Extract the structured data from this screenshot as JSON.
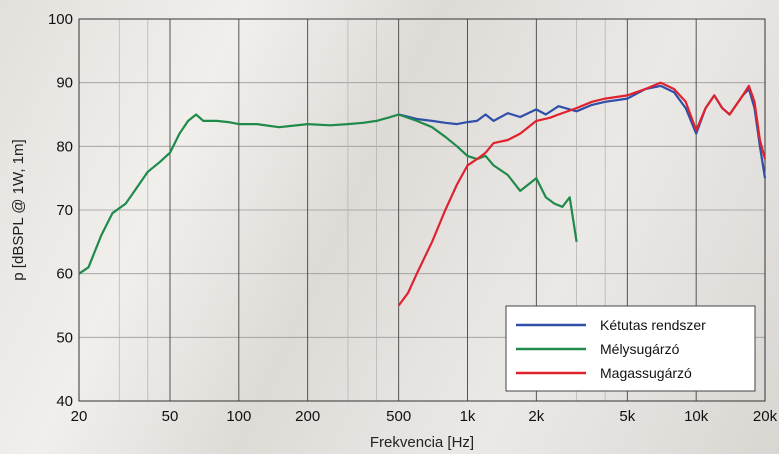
{
  "chart_data": {
    "type": "line",
    "title": "",
    "xlabel": "Frekvencia [Hz]",
    "ylabel": "p [dBSPL @ 1W, 1m]",
    "x_scale": "log",
    "xlim": [
      20,
      20000
    ],
    "ylim": [
      40,
      100
    ],
    "x_ticks": [
      20,
      50,
      100,
      200,
      500,
      1000,
      2000,
      5000,
      10000,
      20000
    ],
    "x_tick_labels": [
      "20",
      "50",
      "100",
      "200",
      "500",
      "1k",
      "2k",
      "5k",
      "10k",
      "20k"
    ],
    "x_minor_grid": [
      30,
      40,
      300,
      400,
      3000,
      4000
    ],
    "y_ticks": [
      40,
      50,
      60,
      70,
      80,
      90,
      100
    ],
    "y_tick_labels": [
      "40",
      "50",
      "60",
      "70",
      "80",
      "90",
      "100"
    ],
    "grid": true,
    "legend_position": "bottom-right",
    "series": [
      {
        "name": "Kétutas rendszer",
        "color": "#2f4fa8",
        "points": [
          [
            500,
            85
          ],
          [
            600,
            84.3
          ],
          [
            700,
            84
          ],
          [
            800,
            83.7
          ],
          [
            900,
            83.5
          ],
          [
            1000,
            83.8
          ],
          [
            1100,
            84
          ],
          [
            1200,
            85
          ],
          [
            1300,
            84
          ],
          [
            1500,
            85.2
          ],
          [
            1700,
            84.6
          ],
          [
            2000,
            85.8
          ],
          [
            2200,
            85
          ],
          [
            2500,
            86.3
          ],
          [
            3000,
            85.5
          ],
          [
            3500,
            86.5
          ],
          [
            4000,
            87
          ],
          [
            5000,
            87.5
          ],
          [
            6000,
            89
          ],
          [
            7000,
            89.5
          ],
          [
            8000,
            88.5
          ],
          [
            9000,
            86
          ],
          [
            10000,
            82
          ],
          [
            11000,
            86
          ],
          [
            12000,
            88
          ],
          [
            13000,
            86
          ],
          [
            14000,
            85
          ],
          [
            16000,
            88
          ],
          [
            17000,
            89
          ],
          [
            18000,
            86
          ],
          [
            19000,
            80
          ],
          [
            20000,
            75
          ]
        ]
      },
      {
        "name": "Mélysugárzó",
        "color": "#1f8a4a",
        "points": [
          [
            20,
            60
          ],
          [
            22,
            61
          ],
          [
            25,
            66
          ],
          [
            28,
            69.5
          ],
          [
            32,
            71
          ],
          [
            35,
            73
          ],
          [
            40,
            76
          ],
          [
            45,
            77.5
          ],
          [
            50,
            79
          ],
          [
            55,
            82
          ],
          [
            60,
            84
          ],
          [
            65,
            85
          ],
          [
            70,
            84
          ],
          [
            80,
            84
          ],
          [
            90,
            83.8
          ],
          [
            100,
            83.5
          ],
          [
            120,
            83.5
          ],
          [
            150,
            83
          ],
          [
            200,
            83.5
          ],
          [
            250,
            83.3
          ],
          [
            300,
            83.5
          ],
          [
            350,
            83.7
          ],
          [
            400,
            84
          ],
          [
            450,
            84.5
          ],
          [
            500,
            85
          ],
          [
            600,
            84
          ],
          [
            700,
            83
          ],
          [
            800,
            81.5
          ],
          [
            900,
            80
          ],
          [
            1000,
            78.5
          ],
          [
            1100,
            78
          ],
          [
            1200,
            78.5
          ],
          [
            1300,
            77
          ],
          [
            1500,
            75.5
          ],
          [
            1700,
            73
          ],
          [
            2000,
            75
          ],
          [
            2200,
            72
          ],
          [
            2400,
            71
          ],
          [
            2600,
            70.5
          ],
          [
            2800,
            72
          ],
          [
            3000,
            65
          ]
        ]
      },
      {
        "name": "Magassugárzó",
        "color": "#e0222e",
        "points": [
          [
            500,
            55
          ],
          [
            550,
            57
          ],
          [
            600,
            60
          ],
          [
            700,
            65
          ],
          [
            800,
            70
          ],
          [
            900,
            74
          ],
          [
            1000,
            77
          ],
          [
            1100,
            78
          ],
          [
            1200,
            79
          ],
          [
            1300,
            80.5
          ],
          [
            1500,
            81
          ],
          [
            1700,
            82
          ],
          [
            2000,
            84
          ],
          [
            2300,
            84.5
          ],
          [
            2500,
            85
          ],
          [
            3000,
            86
          ],
          [
            3500,
            87
          ],
          [
            4000,
            87.5
          ],
          [
            5000,
            88
          ],
          [
            6000,
            89
          ],
          [
            7000,
            90
          ],
          [
            8000,
            89
          ],
          [
            9000,
            87
          ],
          [
            10000,
            82.5
          ],
          [
            11000,
            86
          ],
          [
            12000,
            88
          ],
          [
            13000,
            86
          ],
          [
            14000,
            85
          ],
          [
            16000,
            88
          ],
          [
            17000,
            89.5
          ],
          [
            18000,
            87
          ],
          [
            19000,
            81
          ],
          [
            20000,
            78
          ]
        ]
      }
    ]
  }
}
